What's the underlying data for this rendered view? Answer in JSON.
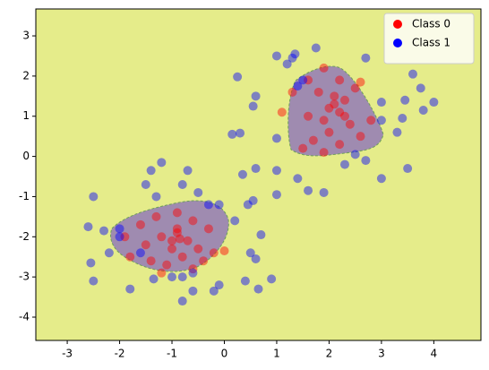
{
  "chart_data": {
    "type": "scatter",
    "xlim": [
      -3.6,
      4.9
    ],
    "ylim": [
      -4.58,
      3.67
    ],
    "xticks": [
      -3,
      -2,
      -1,
      0,
      1,
      2,
      3,
      4
    ],
    "yticks": [
      -4,
      -3,
      -2,
      -1,
      0,
      1,
      2,
      3
    ],
    "legend": "upper right",
    "series": [
      {
        "name": "Class 0",
        "color": "#ff0000",
        "x": [
          1.6,
          1.9,
          2.2,
          2.5,
          1.8,
          2.1,
          2.3,
          2.0,
          2.2,
          1.6,
          1.9,
          2.4,
          2.0,
          2.6,
          1.7,
          2.2,
          1.5,
          1.9,
          2.8,
          1.3,
          1.1,
          2.6,
          2.1,
          2.3,
          -1.9,
          -1.6,
          -1.3,
          -0.9,
          -0.6,
          -0.3,
          -1.5,
          -1.2,
          -0.9,
          -0.7,
          -1.0,
          -0.5,
          -0.2,
          -1.8,
          -1.4,
          -1.1,
          -0.8,
          -0.6,
          -1.2,
          -0.4,
          0.0,
          -0.9,
          -1.0,
          -0.85
        ],
        "y": [
          1.9,
          2.2,
          1.9,
          1.7,
          1.6,
          1.5,
          1.4,
          1.2,
          1.1,
          1.0,
          0.9,
          0.8,
          0.6,
          0.5,
          0.4,
          0.3,
          0.2,
          0.1,
          0.9,
          1.6,
          1.1,
          1.85,
          1.3,
          1.0,
          -2.0,
          -1.7,
          -1.5,
          -1.4,
          -1.6,
          -1.8,
          -2.2,
          -2.0,
          -1.9,
          -2.1,
          -2.3,
          -2.3,
          -2.4,
          -2.5,
          -2.6,
          -2.7,
          -2.5,
          -2.8,
          -2.9,
          -2.6,
          -2.35,
          -1.8,
          -2.1,
          -2.05
        ]
      },
      {
        "name": "Class 1",
        "color": "#0000ff",
        "x": [
          -2.0,
          -2.0,
          -0.3,
          -0.1,
          -0.8,
          -0.6,
          -1.0,
          1.5,
          1.4,
          -2.5,
          -2.6,
          -2.3,
          -2.2,
          -2.55,
          -2.5,
          -1.8,
          -1.6,
          -1.35,
          -1.5,
          -1.3,
          -0.8,
          -0.7,
          -1.4,
          -1.2,
          -0.5,
          0.2,
          0.45,
          0.55,
          0.6,
          0.35,
          0.15,
          0.3,
          0.55,
          0.6,
          0.25,
          1.0,
          1.2,
          1.3,
          1.35,
          1.75,
          2.7,
          3.0,
          3.0,
          3.3,
          3.4,
          3.45,
          3.6,
          3.75,
          3.8,
          4.0,
          3.5,
          3.0,
          2.7,
          2.5,
          2.3,
          1.4,
          1.6,
          1.9,
          1.0,
          1.0,
          1.0,
          0.5,
          0.6,
          0.65,
          0.9,
          0.4,
          -0.1,
          -0.2,
          -0.6,
          -0.8,
          0.7
        ],
        "y": [
          -1.8,
          -2.0,
          -1.2,
          -1.2,
          -3.0,
          -2.9,
          -3.0,
          1.9,
          1.75,
          -1.0,
          -1.75,
          -1.85,
          -2.4,
          -2.65,
          -3.1,
          -3.3,
          -2.4,
          -3.05,
          -0.7,
          -1.0,
          -0.7,
          -0.35,
          -0.35,
          -0.15,
          -0.9,
          -1.6,
          -1.2,
          -1.1,
          -0.3,
          -0.45,
          0.55,
          0.58,
          1.25,
          1.5,
          1.98,
          2.5,
          2.3,
          2.45,
          2.55,
          2.7,
          2.45,
          1.35,
          0.9,
          0.6,
          0.95,
          1.4,
          2.05,
          1.7,
          1.15,
          1.35,
          -0.3,
          -0.55,
          -0.1,
          0.05,
          -0.2,
          -0.55,
          -0.85,
          -0.9,
          -0.35,
          -0.95,
          0.45,
          -2.4,
          -2.55,
          -3.3,
          -3.05,
          -3.1,
          -3.2,
          -3.35,
          -3.35,
          -3.6,
          -1.95
        ]
      }
    ]
  }
}
